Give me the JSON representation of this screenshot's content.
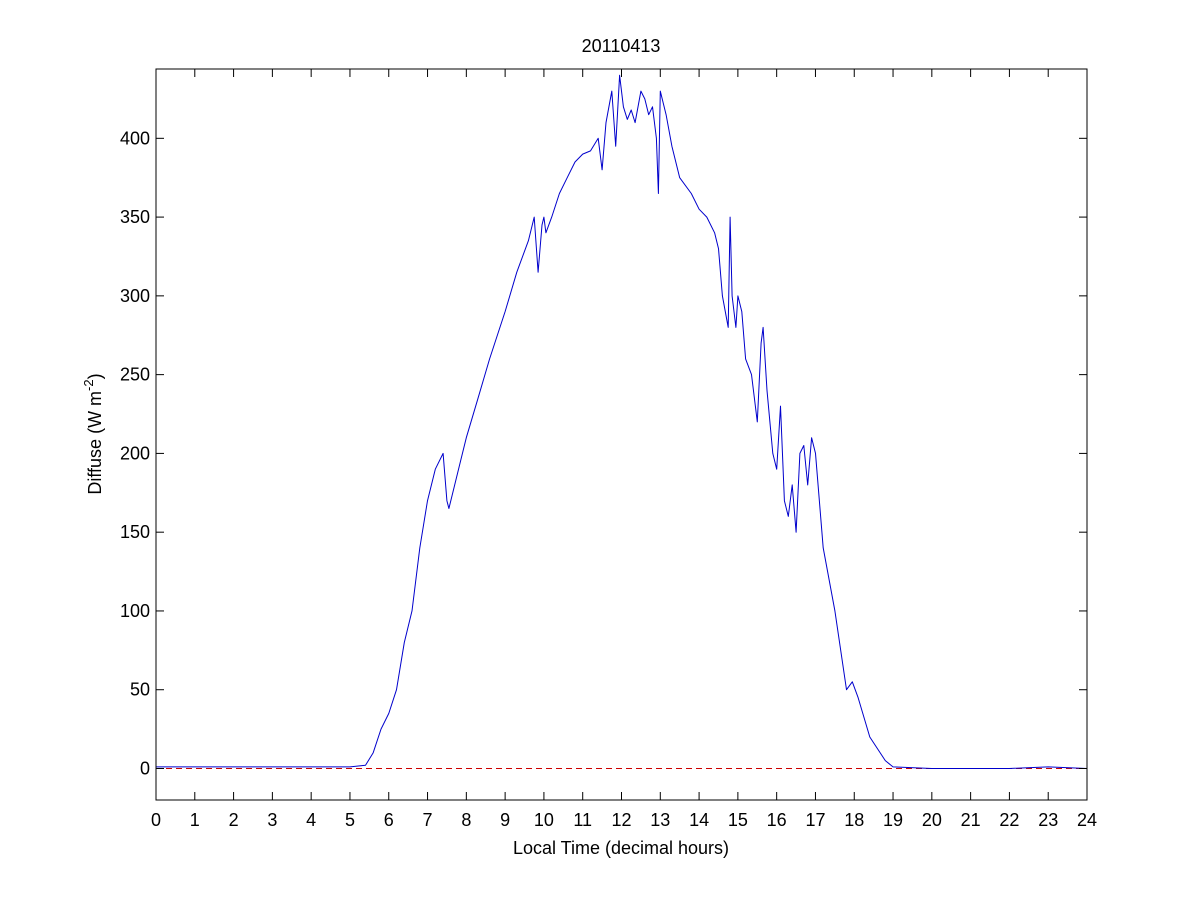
{
  "chart_data": {
    "type": "line",
    "title": "20110413",
    "xlabel": "Local Time (decimal hours)",
    "ylabel": {
      "main": "Diffuse (W m",
      "sup": "-2",
      "close": ")"
    },
    "xlim": [
      0,
      24
    ],
    "ylim": [
      -20,
      444
    ],
    "xticks": [
      0,
      1,
      2,
      3,
      4,
      5,
      6,
      7,
      8,
      9,
      10,
      11,
      12,
      13,
      14,
      15,
      16,
      17,
      18,
      19,
      20,
      21,
      22,
      23,
      24
    ],
    "yticks": [
      0,
      50,
      100,
      150,
      200,
      250,
      300,
      350,
      400
    ],
    "grid": false,
    "colors": {
      "series": "#0000cc",
      "reference": "#cc0000",
      "axes": "#000000"
    },
    "reference_line": {
      "y": 0,
      "style": "dashed"
    },
    "series": [
      {
        "x": [
          0,
          1,
          2,
          3,
          4,
          5,
          5.4,
          5.6,
          5.8,
          6.0,
          6.2,
          6.4,
          6.6,
          6.8,
          7.0,
          7.2,
          7.4,
          7.5,
          7.55,
          7.7,
          7.85,
          8.0,
          8.3,
          8.6,
          9.0,
          9.3,
          9.6,
          9.75,
          9.85,
          9.95,
          10.0,
          10.05,
          10.2,
          10.4,
          10.6,
          10.8,
          11.0,
          11.2,
          11.4,
          11.5,
          11.6,
          11.75,
          11.85,
          11.95,
          12.05,
          12.15,
          12.25,
          12.35,
          12.5,
          12.6,
          12.7,
          12.8,
          12.9,
          12.95,
          13.0,
          13.05,
          13.15,
          13.3,
          13.5,
          13.8,
          14.0,
          14.2,
          14.4,
          14.5,
          14.6,
          14.75,
          14.8,
          14.85,
          14.95,
          15.0,
          15.1,
          15.2,
          15.35,
          15.5,
          15.6,
          15.65,
          15.75,
          15.9,
          16.0,
          16.1,
          16.2,
          16.3,
          16.4,
          16.5,
          16.6,
          16.7,
          16.8,
          16.9,
          17.0,
          17.2,
          17.5,
          17.8,
          17.95,
          18.1,
          18.4,
          18.8,
          19.0,
          20,
          21,
          22,
          23,
          24
        ],
        "y": [
          1,
          1,
          1,
          1,
          1,
          1,
          2,
          10,
          25,
          35,
          50,
          80,
          100,
          140,
          170,
          190,
          200,
          170,
          165,
          180,
          195,
          210,
          235,
          260,
          290,
          315,
          335,
          350,
          315,
          345,
          350,
          340,
          350,
          365,
          375,
          385,
          390,
          392,
          400,
          380,
          410,
          430,
          395,
          440,
          420,
          412,
          418,
          410,
          430,
          425,
          415,
          420,
          400,
          365,
          430,
          425,
          415,
          395,
          375,
          365,
          355,
          350,
          340,
          330,
          300,
          280,
          350,
          300,
          280,
          300,
          290,
          260,
          250,
          220,
          270,
          280,
          240,
          200,
          190,
          230,
          170,
          160,
          180,
          150,
          200,
          205,
          180,
          210,
          200,
          140,
          100,
          50,
          55,
          45,
          20,
          5,
          1,
          0,
          0,
          0,
          1,
          0
        ]
      }
    ]
  }
}
